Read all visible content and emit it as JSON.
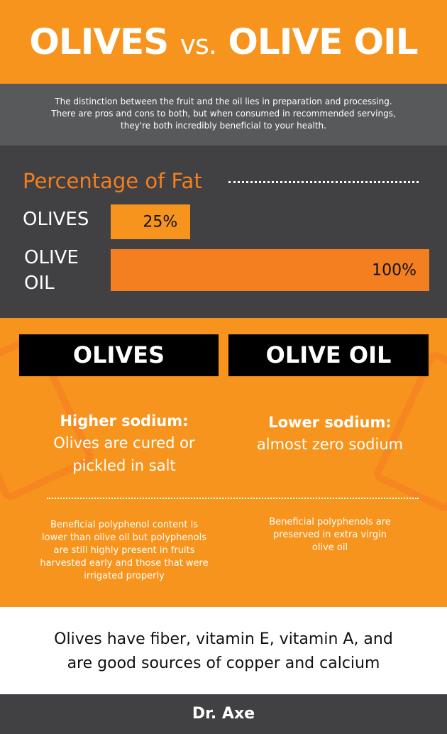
{
  "header": {
    "title_left": "OLIVES",
    "title_vs": "vs.",
    "title_right": "OLIVE OIL"
  },
  "intro": {
    "lines": [
      "The distinction between the fruit and the oil lies in preparation and processing.",
      "There are pros and cons to both, but when consumed in recommended servings,",
      "they're both incredibly beneficial to your health."
    ]
  },
  "chart_data": {
    "type": "bar",
    "orientation": "horizontal",
    "title": "Percentage of Fat",
    "categories": [
      "OLIVES",
      "OLIVE OIL"
    ],
    "category_lines": [
      [
        "OLIVES"
      ],
      [
        "OLIVE",
        "OIL"
      ]
    ],
    "values": [
      25,
      100
    ],
    "value_labels": [
      "25%",
      "100%"
    ],
    "xlim": [
      0,
      100
    ],
    "grid": false,
    "colors": [
      "#f7941d",
      "#f47f20"
    ]
  },
  "comparison": {
    "olives": {
      "title": "OLIVES",
      "sodium_head": "Higher sodium:",
      "sodium_lines": [
        "Olives are cured or",
        "pickled in salt"
      ],
      "polyphenol_lines": [
        "Beneficial polyphenol content is",
        "lower than olive oil but polyphenols",
        "are still highly present in fruits",
        "harvested early and those that were",
        "irrigated properly"
      ]
    },
    "olive_oil": {
      "title": "OLIVE OIL",
      "sodium_head": "Lower sodium:",
      "sodium_lines": [
        "almost zero sodium"
      ],
      "polyphenol_lines": [
        "Beneficial polyphenols are",
        "preserved in extra virgin",
        "olive oil"
      ]
    }
  },
  "bottom": {
    "lines": [
      "Olives have fiber, vitamin E, vitamin A, and",
      "are good sources of copper and calcium"
    ]
  },
  "footer": {
    "brand": "Dr. Axe"
  },
  "colors": {
    "orange": "#f7941d",
    "dark": "#414042",
    "gray": "#58595b"
  }
}
